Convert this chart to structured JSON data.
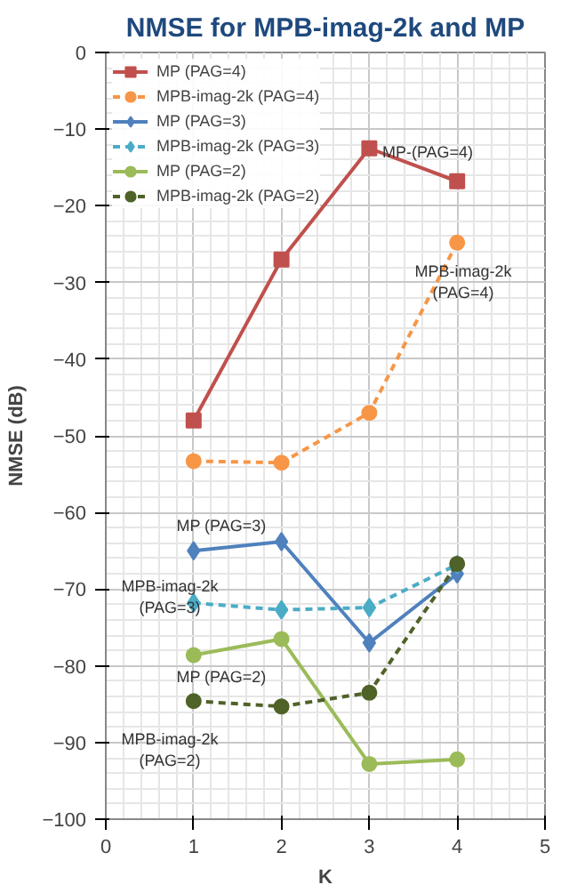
{
  "chart_data": {
    "type": "line",
    "title": "NMSE for MPB-imag-2k and MP",
    "xlabel": "K",
    "ylabel": "NMSE (dB)",
    "x": [
      1,
      2,
      3,
      4
    ],
    "series": [
      {
        "name": "MP (PAG=4)",
        "color": "#c0504d",
        "values": [
          -48,
          -27,
          -12.5,
          -16.8
        ],
        "marker": "square",
        "line_style": "solid"
      },
      {
        "name": "MPB-imag-2k (PAG=4)",
        "color": "#f79646",
        "values": [
          -53.3,
          -53.5,
          -47,
          -24.8
        ],
        "marker": "circle",
        "line_style": "dashed"
      },
      {
        "name": "MP (PAG=3)",
        "color": "#4f81bd",
        "values": [
          -65,
          -63.8,
          -77,
          -68
        ],
        "marker": "diamond",
        "line_style": "solid"
      },
      {
        "name": "MPB-imag-2k (PAG=3)",
        "color": "#4bacc6",
        "values": [
          -71.8,
          -72.7,
          -72.4,
          -66.8
        ],
        "marker": "diamond",
        "line_style": "dashed"
      },
      {
        "name": "MP (PAG=2)",
        "color": "#9bbb59",
        "values": [
          -78.6,
          -76.5,
          -92.8,
          -92.2
        ],
        "marker": "circle",
        "line_style": "solid"
      },
      {
        "name": "MPB-imag-2k (PAG=2)",
        "color": "#4f6228",
        "values": [
          -84.6,
          -85.3,
          -83.5,
          -66.7
        ],
        "marker": "circle",
        "line_style": "dashed"
      }
    ],
    "xlim": [
      0,
      5
    ],
    "xticks": [
      0,
      1,
      2,
      3,
      4,
      5
    ],
    "ylim": [
      -100,
      0
    ],
    "yticks": [
      -100,
      -90,
      -80,
      -70,
      -60,
      -50,
      -40,
      -30,
      -20,
      -10,
      0
    ],
    "grid": true,
    "legend": "top left",
    "annotations": [
      "MP-(PAG=4)",
      "MPB-imag-2k\n(PAG=4)",
      "MP (PAG=3)",
      "MPB-imag-2k\n(PAG=3)",
      "MP (PAG=2)",
      "MPB-imag-2k\n(PAG=2)"
    ]
  }
}
